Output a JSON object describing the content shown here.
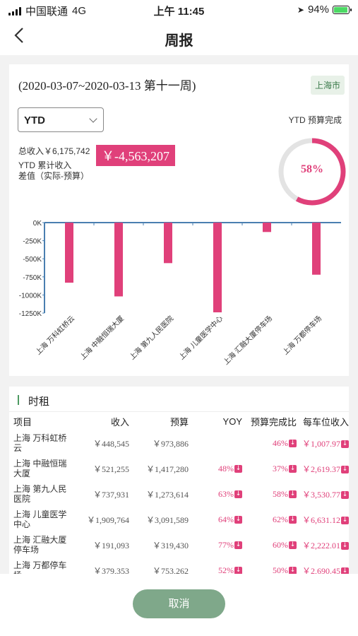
{
  "status_bar": {
    "carrier": "中国联通",
    "network": "4G",
    "time": "上午 11:45",
    "battery": "94%"
  },
  "nav": {
    "title": "周报"
  },
  "summary": {
    "date_range": "(2020-03-07~2020-03-13 第十一周)",
    "city": "上海市",
    "period_select": "YTD",
    "ytd_budget_label": "YTD 预算完成",
    "total_income": "总收入￥6,175,742",
    "difference": "￥-4,563,207",
    "ytd_cum_line1": "YTD 累计收入",
    "ytd_cum_line2": "差值（实际-预算）",
    "completion_text": "58%",
    "completion": 0.58
  },
  "chart_data": {
    "type": "bar",
    "categories": [
      "上海 万科虹桥云",
      "上海 中融恒瑞大厦",
      "上海 第九人民医院",
      "上海 儿童医学中心",
      "上海 汇融大厦停车场",
      "上海 万都停车场"
    ],
    "values": [
      -830000,
      -1020000,
      -560000,
      -1240000,
      -130000,
      -720000
    ],
    "ylim": [
      -1250000,
      0
    ],
    "yticks": [
      "0K",
      "-250K",
      "-500K",
      "-750K",
      "-1000K",
      "-1250K"
    ],
    "bar_color": "#e0407a",
    "axis_color": "#4a7fb0"
  },
  "table": {
    "section_title": "时租",
    "headers": [
      "项目",
      "收入",
      "预算",
      "YOY",
      "预算完成比",
      "每车位收入"
    ],
    "rows": [
      {
        "p1": "上海 万科虹桥",
        "p2": "云",
        "income": "￥448,545",
        "budget": "￥973,886",
        "yoy": "",
        "ratio": "46%",
        "per": "￥1,007.97"
      },
      {
        "p1": "上海 中融恒瑞",
        "p2": "大厦",
        "income": "￥521,255",
        "budget": "￥1,417,280",
        "yoy": "48%",
        "ratio": "37%",
        "per": "￥2,619.37"
      },
      {
        "p1": "上海 第九人民",
        "p2": "医院",
        "income": "￥737,931",
        "budget": "￥1,273,614",
        "yoy": "63%",
        "ratio": "58%",
        "per": "￥3,530.77"
      },
      {
        "p1": "上海 儿童医学",
        "p2": "中心",
        "income": "￥1,909,764",
        "budget": "￥3,091,589",
        "yoy": "64%",
        "ratio": "62%",
        "per": "￥6,631.12"
      },
      {
        "p1": "上海 汇融大厦",
        "p2": "停车场",
        "income": "￥191,093",
        "budget": "￥319,430",
        "yoy": "77%",
        "ratio": "60%",
        "per": "￥2,222.01"
      },
      {
        "p1": "上海 万都停车",
        "p2": "场",
        "income": "￥379,353",
        "budget": "￥753,262",
        "yoy": "52%",
        "ratio": "50%",
        "per": "￥2,690.45"
      }
    ]
  },
  "footer": {
    "cancel_label": "取消"
  }
}
